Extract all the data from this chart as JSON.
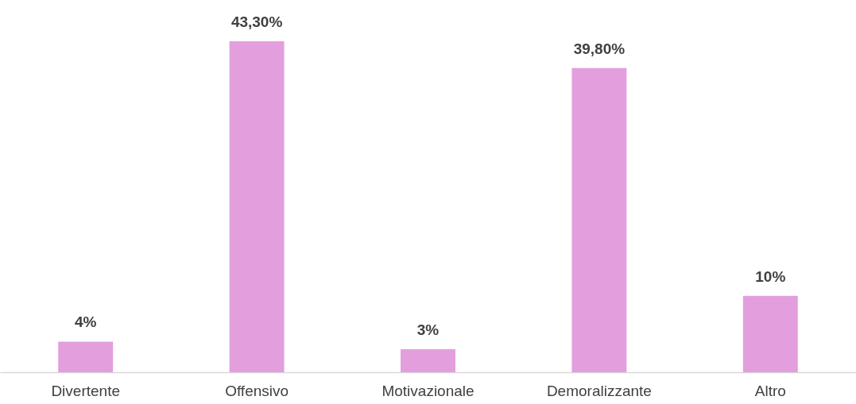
{
  "chart_data": {
    "type": "bar",
    "categories": [
      "Divertente",
      "Offensivo",
      "Motivazionale",
      "Demoralizzante",
      "Altro"
    ],
    "values": [
      4,
      43.3,
      3,
      39.8,
      10
    ],
    "value_labels": [
      "4%",
      "43,30%",
      "3%",
      "39,80%",
      "10%"
    ],
    "color": "#e39ede",
    "grid": false
  }
}
